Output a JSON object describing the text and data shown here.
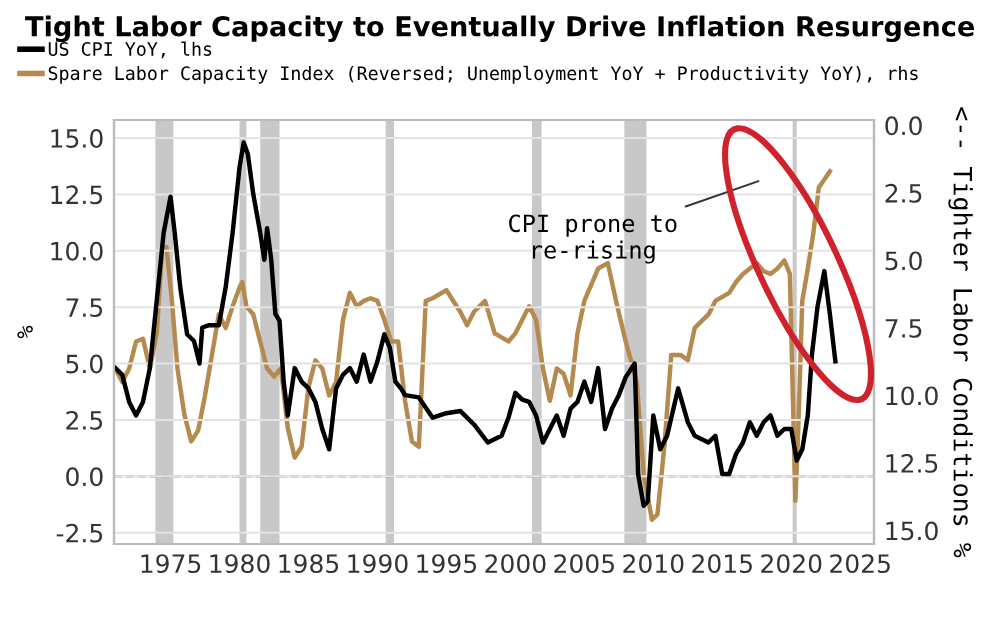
{
  "chart_data": {
    "type": "line",
    "title": "Tight Labor Capacity to Eventually Drive Inflation Resurgence",
    "ylabel": "%",
    "y2label": "<-- Tighter Labor Conditions %",
    "legend": "top left",
    "grid": "y",
    "line_style": "solid",
    "xlim": [
      1970.9,
      2026
    ],
    "xticks": [
      1975,
      1980,
      1985,
      1990,
      1995,
      2000,
      2005,
      2010,
      2015,
      2020,
      2025
    ],
    "ylim": [
      -3.0,
      15.8
    ],
    "yticks": [
      -2.5,
      {
        "value": 0,
        "label": "0.0"
      },
      2.5,
      {
        "value": 5,
        "label": "5.0"
      },
      7.5,
      {
        "value": 10,
        "label": "10.0"
      },
      12.5,
      {
        "value": 15,
        "label": "15.0"
      }
    ],
    "y2lim": [
      15.5,
      -0.2
    ],
    "y2ticks": [
      {
        "value": 0,
        "label": "0.0"
      },
      2.5,
      {
        "value": 5,
        "label": "5.0"
      },
      7.5,
      {
        "value": 10,
        "label": "10.0"
      },
      12.5,
      {
        "value": 15,
        "label": "15.0"
      }
    ],
    "series": [
      {
        "name": "US CPI YoY, lhs",
        "color": "#000000",
        "x": [
          1971.0,
          1971.5,
          1972.0,
          1972.5,
          1973.0,
          1973.5,
          1974.0,
          1974.5,
          1975.0,
          1975.3,
          1975.7,
          1976.2,
          1976.7,
          1977.1,
          1977.3,
          1977.8,
          1978.5,
          1979.0,
          1979.5,
          1980.0,
          1980.3,
          1980.6,
          1981.0,
          1981.5,
          1981.8,
          1982.0,
          1982.3,
          1982.6,
          1982.9,
          1983.2,
          1983.5,
          1984.0,
          1984.5,
          1985.0,
          1985.5,
          1986.0,
          1986.5,
          1987.0,
          1987.5,
          1988.0,
          1988.5,
          1989.0,
          1989.5,
          1990.0,
          1990.5,
          1990.9,
          1991.3,
          1991.7,
          1992.0,
          1993.0,
          1994.0,
          1995.0,
          1996.0,
          1997.0,
          1998.0,
          1999.0,
          1999.5,
          2000.0,
          2000.5,
          2001.0,
          2001.5,
          2002.0,
          2002.5,
          2003.0,
          2003.5,
          2004.0,
          2004.5,
          2005.0,
          2005.5,
          2006.0,
          2006.5,
          2007.0,
          2007.5,
          2008.0,
          2008.65,
          2008.9,
          2009.3,
          2009.6,
          2010.0,
          2010.5,
          2011.0,
          2011.8,
          2012.5,
          2013.0,
          2014.0,
          2014.5,
          2015.0,
          2015.5,
          2016.0,
          2016.5,
          2017.0,
          2017.5,
          2018.0,
          2018.5,
          2019.0,
          2019.5,
          2020.0,
          2020.4,
          2020.8,
          2021.2,
          2021.5,
          2021.9,
          2022.4,
          2022.8,
          2023.2
        ],
        "values": [
          4.8,
          4.5,
          3.3,
          2.7,
          3.3,
          4.8,
          7.8,
          10.8,
          12.4,
          10.8,
          8.4,
          6.3,
          6.0,
          5.0,
          6.6,
          6.7,
          6.7,
          8.4,
          10.8,
          13.7,
          14.8,
          14.3,
          12.5,
          10.8,
          9.6,
          11.0,
          9.6,
          7.2,
          6.9,
          4.2,
          2.7,
          4.8,
          4.2,
          3.9,
          3.3,
          2.1,
          1.2,
          3.9,
          4.5,
          4.8,
          4.2,
          5.4,
          4.2,
          5.1,
          6.3,
          5.7,
          4.2,
          3.9,
          3.6,
          3.5,
          2.6,
          2.8,
          2.9,
          2.3,
          1.5,
          1.8,
          2.6,
          3.7,
          3.4,
          3.3,
          2.7,
          1.5,
          2.1,
          2.7,
          1.8,
          3.0,
          3.3,
          4.2,
          3.3,
          4.8,
          2.1,
          3.0,
          3.6,
          4.4,
          5.0,
          0.1,
          -1.3,
          -1.1,
          2.7,
          1.2,
          1.8,
          3.9,
          2.4,
          1.8,
          1.5,
          1.8,
          0.1,
          0.1,
          1.0,
          1.5,
          2.4,
          1.8,
          2.4,
          2.7,
          1.8,
          2.1,
          2.1,
          0.7,
          1.2,
          2.7,
          5.4,
          7.5,
          9.1,
          7.2,
          5.1
        ]
      },
      {
        "name": "Spare Labor Capacity Index (Reversed; Unemployment YoY + Productivity YoY), rhs",
        "color": "#b58a4f",
        "axis": "y2",
        "x": [
          1971.0,
          1971.5,
          1972.0,
          1972.5,
          1973.0,
          1973.5,
          1974.0,
          1974.4,
          1974.7,
          1975.1,
          1975.5,
          1976.0,
          1976.5,
          1977.0,
          1977.5,
          1978.0,
          1978.5,
          1979.0,
          1979.5,
          1980.0,
          1980.2,
          1980.5,
          1981.0,
          1981.5,
          1982.0,
          1982.5,
          1983.0,
          1983.5,
          1984.0,
          1984.5,
          1985.0,
          1985.5,
          1986.0,
          1986.5,
          1987.0,
          1987.5,
          1988.0,
          1988.5,
          1989.0,
          1989.5,
          1990.0,
          1990.5,
          1991.0,
          1991.5,
          1992.0,
          1992.5,
          1993.0,
          1993.5,
          1994.0,
          1995.0,
          1995.5,
          1996.0,
          1996.5,
          1997.0,
          1997.8,
          1998.5,
          1999.5,
          2000.0,
          2001.0,
          2001.5,
          2002.0,
          2002.5,
          2003.0,
          2003.5,
          2004.0,
          2004.5,
          2005.0,
          2006.0,
          2006.7,
          2007.3,
          2008.0,
          2008.8,
          2009.3,
          2009.9,
          2010.3,
          2010.8,
          2011.3,
          2012.0,
          2012.5,
          2013.0,
          2014.0,
          2014.5,
          2015.5,
          2016.0,
          2016.5,
          2017.0,
          2017.5,
          2018.0,
          2018.5,
          2019.0,
          2019.5,
          2019.9,
          2020.3,
          2020.5,
          2020.8,
          2021.2,
          2021.6,
          2022.0,
          2022.4,
          2022.8
        ],
        "values": [
          9.0,
          9.5,
          9.0,
          8.0,
          7.9,
          9.0,
          7.7,
          4.5,
          4.5,
          6.5,
          9.0,
          10.7,
          11.7,
          11.3,
          10.0,
          8.5,
          7.0,
          7.5,
          6.7,
          6.0,
          5.8,
          6.7,
          7.0,
          8.0,
          9.0,
          9.3,
          9.0,
          11.2,
          12.3,
          11.9,
          9.7,
          8.7,
          9.0,
          10.0,
          9.5,
          7.2,
          6.2,
          6.7,
          6.5,
          6.4,
          6.5,
          7.2,
          8.0,
          8.0,
          10.2,
          11.7,
          11.9,
          6.5,
          6.4,
          6.1,
          6.5,
          6.9,
          7.4,
          6.9,
          6.5,
          7.7,
          8.0,
          7.7,
          6.7,
          7.2,
          9.0,
          10.2,
          9.0,
          9.2,
          10.0,
          7.7,
          6.5,
          5.3,
          5.1,
          6.5,
          8.0,
          9.5,
          12.9,
          14.6,
          14.4,
          11.9,
          8.5,
          8.5,
          8.7,
          7.5,
          7.0,
          6.5,
          6.2,
          5.8,
          5.5,
          5.3,
          5.1,
          5.4,
          5.5,
          5.3,
          5.0,
          5.5,
          13.9,
          11.4,
          6.5,
          5.3,
          4.0,
          2.3,
          2.0,
          1.7
        ]
      }
    ],
    "ref_lines": [
      {
        "axis": "y",
        "value": 0.0,
        "color": "#999999",
        "line_style": "dashed"
      }
    ],
    "bands": [
      {
        "axis": "x",
        "from": 1973.9,
        "to": 1975.2,
        "color": "#c8c8c8"
      },
      {
        "axis": "x",
        "from": 1980.0,
        "to": 1980.5,
        "color": "#c8c8c8"
      },
      {
        "axis": "x",
        "from": 1981.5,
        "to": 1982.9,
        "color": "#c8c8c8"
      },
      {
        "axis": "x",
        "from": 1990.6,
        "to": 1991.2,
        "color": "#c8c8c8"
      },
      {
        "axis": "x",
        "from": 2001.2,
        "to": 2001.9,
        "color": "#c8c8c8"
      },
      {
        "axis": "x",
        "from": 2007.9,
        "to": 2009.5,
        "color": "#c8c8c8"
      },
      {
        "axis": "x",
        "from": 2020.1,
        "to": 2020.4,
        "color": "#c8c8c8"
      }
    ],
    "annotations": [
      "CPI prone to\nre-rising"
    ]
  }
}
